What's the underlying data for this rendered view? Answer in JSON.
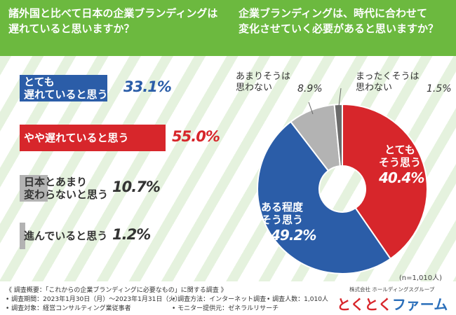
{
  "left_title": "諸外国と比べて日本の企業ブランディングは\n遅れていると思いますか？",
  "right_title": "企業ブランディングは、時代に合わせて\n変化させていく必要があると思いますか？",
  "chart_data": [
    {
      "type": "bar",
      "orientation": "horizontal",
      "title": "諸外国と比べて日本の企業ブランディングは遅れていると思いますか？",
      "categories": [
        "とても\n遅れていると思う",
        "やや遅れていると思う",
        "日本とあまり\n変わらないと思う",
        "進んでいると思う"
      ],
      "values": [
        33.1,
        55.0,
        10.7,
        1.2
      ],
      "value_labels": [
        "33.1%",
        "55.0%",
        "10.7%",
        "1.2%"
      ],
      "colors": [
        "#2b5da8",
        "#d7262b",
        "#b3b3b3",
        "#b3b3b3"
      ],
      "unit": "%"
    },
    {
      "type": "pie",
      "title": "企業ブランディングは、時代に合わせて変化させていく必要があると思いますか？",
      "categories": [
        "とても\nそう思う",
        "ある程度\nそう思う",
        "あまりそうは\n思わない",
        "まったくそうは\n思わない"
      ],
      "values": [
        40.4,
        49.2,
        8.9,
        1.5
      ],
      "value_labels": [
        "40.4%",
        "49.2%",
        "8.9%",
        "1.5%"
      ],
      "colors": [
        "#d7262b",
        "#2b5da8",
        "#b3b3b3",
        "#6b6b6b"
      ],
      "sample_size": "(n=1,010人)"
    }
  ],
  "footer": {
    "line1": "《 調査概要：「これからの企業ブランディングに必要なもの」に関する調査 》",
    "period": "• 調査期間：2023年1月30日（月）～2023年1月31日（火）",
    "method": "• 調査方法：インターネット調査",
    "count": "• 調査人数：1,010人",
    "target": "• 調査対象：経営コンサルティング業従事者",
    "provider": "• モニター提供元：ゼネラルリサーチ",
    "company": "株式会社 ホールディングスグループ",
    "logo_a": "とくとく",
    "logo_b": "ファーム"
  }
}
